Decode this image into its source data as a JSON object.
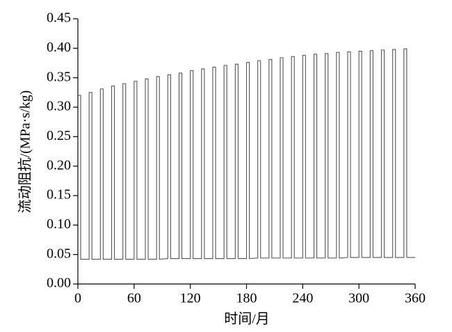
{
  "chart_data": {
    "type": "line",
    "xlabel": "时间/月",
    "ylabel": "流动阻抗/(MPa·s/kg)",
    "xlim": [
      0,
      360
    ],
    "xticks": [
      0,
      60,
      120,
      180,
      240,
      300,
      360
    ],
    "ylim": [
      0,
      0.45
    ],
    "yticks": [
      {
        "value": 0,
        "label": "0.00"
      },
      0.05,
      {
        "value": 0.1,
        "label": "0.10"
      },
      0.15,
      {
        "value": 0.2,
        "label": "0.20"
      },
      0.25,
      {
        "value": 0.3,
        "label": "0.30"
      },
      0.35,
      {
        "value": 0.4,
        "label": "0.40"
      },
      0.45
    ],
    "x": [
      0,
      3,
      3,
      12,
      12,
      15,
      15,
      24,
      24,
      27,
      27,
      36,
      36,
      39,
      39,
      48,
      48,
      51,
      51,
      60,
      60,
      63,
      63,
      72,
      72,
      75,
      75,
      84,
      84,
      87,
      87,
      96,
      96,
      99,
      99,
      108,
      108,
      111,
      111,
      120,
      120,
      123,
      123,
      132,
      132,
      135,
      135,
      144,
      144,
      147,
      147,
      156,
      156,
      159,
      159,
      168,
      168,
      171,
      171,
      180,
      180,
      183,
      183,
      192,
      192,
      195,
      195,
      204,
      204,
      207,
      207,
      216,
      216,
      219,
      219,
      228,
      228,
      231,
      231,
      240,
      240,
      243,
      243,
      252,
      252,
      255,
      255,
      264,
      264,
      267,
      267,
      276,
      276,
      279,
      279,
      288,
      288,
      291,
      291,
      300,
      300,
      303,
      303,
      312,
      312,
      315,
      315,
      324,
      324,
      327,
      327,
      336,
      336,
      339,
      339,
      348,
      348,
      351,
      351,
      360
    ],
    "series": [
      {
        "color": "#555555",
        "values": [
          0.32,
          0.32,
          0.042,
          0.042,
          0.325,
          0.325,
          0.042,
          0.042,
          0.331,
          0.331,
          0.042,
          0.042,
          0.336,
          0.336,
          0.042,
          0.042,
          0.34,
          0.34,
          0.042,
          0.042,
          0.344,
          0.344,
          0.042,
          0.042,
          0.348,
          0.348,
          0.042,
          0.042,
          0.352,
          0.352,
          0.042,
          0.043,
          0.355,
          0.355,
          0.043,
          0.043,
          0.358,
          0.358,
          0.043,
          0.043,
          0.362,
          0.362,
          0.043,
          0.043,
          0.365,
          0.365,
          0.043,
          0.043,
          0.368,
          0.368,
          0.043,
          0.043,
          0.371,
          0.371,
          0.043,
          0.043,
          0.373,
          0.373,
          0.043,
          0.043,
          0.376,
          0.376,
          0.043,
          0.044,
          0.379,
          0.379,
          0.044,
          0.044,
          0.381,
          0.381,
          0.044,
          0.044,
          0.384,
          0.384,
          0.044,
          0.044,
          0.386,
          0.386,
          0.044,
          0.044,
          0.388,
          0.388,
          0.044,
          0.044,
          0.39,
          0.39,
          0.044,
          0.044,
          0.391,
          0.391,
          0.044,
          0.044,
          0.393,
          0.393,
          0.044,
          0.045,
          0.394,
          0.394,
          0.045,
          0.045,
          0.395,
          0.395,
          0.045,
          0.045,
          0.396,
          0.396,
          0.045,
          0.045,
          0.397,
          0.397,
          0.045,
          0.045,
          0.398,
          0.398,
          0.045,
          0.045,
          0.399,
          0.399,
          0.045,
          0.045
        ]
      }
    ]
  }
}
